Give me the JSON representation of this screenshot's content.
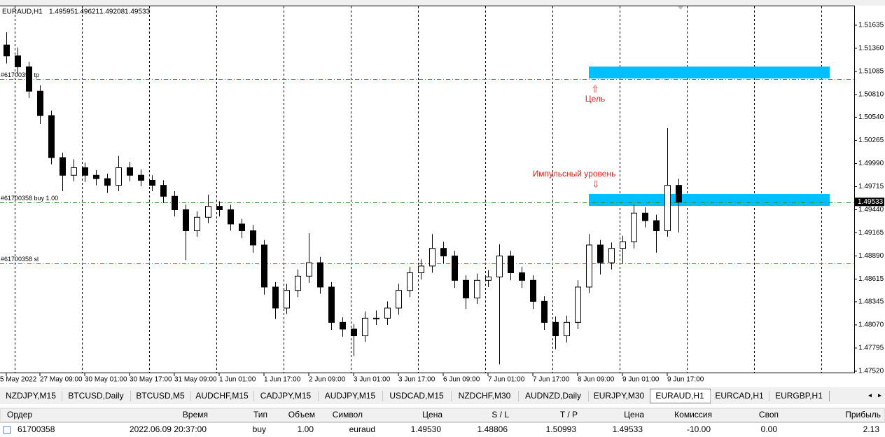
{
  "chart_data": {
    "type": "candlestick",
    "title": "EURAUD,H1",
    "header_values": [
      1.49595,
      1.49621,
      1.49208,
      1.49533
    ],
    "categories": [
      "5 May 2022",
      null,
      null,
      "27 May 09:00",
      null,
      null,
      null,
      "30 May 01:00",
      null,
      null,
      null,
      "30 May 17:00",
      null,
      null,
      null,
      "31 May 09:00",
      null,
      null,
      null,
      "1 Jun 01:00",
      null,
      null,
      null,
      "1 Jun 17:00",
      null,
      null,
      null,
      "2 Jun 09:00",
      null,
      null,
      null,
      "3 Jun 01:00",
      null,
      null,
      null,
      "3 Jun 17:00",
      null,
      null,
      null,
      "6 Jun 09:00",
      null,
      null,
      null,
      "7 Jun 01:00",
      null,
      null,
      null,
      "7 Jun 17:00",
      null,
      null,
      null,
      "8 Jun 09:00",
      null,
      null,
      null,
      "9 Jun 01:00",
      null,
      null,
      null,
      "9 Jun 17:00",
      null
    ],
    "open": [
      1.514,
      1.5127,
      1.5114,
      1.5085,
      1.5056,
      1.5006,
      1.4985,
      1.4994,
      1.4985,
      1.4981,
      1.4973,
      1.4994,
      1.4985,
      1.4979,
      1.4973,
      1.496,
      1.4944,
      1.4919,
      1.4935,
      1.4948,
      1.4944,
      1.4927,
      1.4919,
      1.4902,
      1.4852,
      1.4827,
      1.4848,
      1.4865,
      1.4881,
      1.4852,
      1.481,
      1.4802,
      1.4794,
      1.4815,
      1.4815,
      1.4827,
      1.4848,
      1.4869,
      1.4877,
      1.4898,
      1.4889,
      1.486,
      1.4839,
      1.486,
      1.4864,
      1.4889,
      1.4869,
      1.486,
      1.4835,
      1.481,
      1.4794,
      1.481,
      1.4852,
      1.4902,
      1.4881,
      1.4898,
      1.4906,
      1.494,
      1.4931,
      1.4919,
      1.4973
    ],
    "high": [
      1.5155,
      1.5137,
      1.512,
      1.5092,
      1.5062,
      1.5012,
      1.5004,
      1.5,
      1.4991,
      1.4987,
      1.5008,
      1.5001,
      1.4992,
      1.4985,
      1.4979,
      1.4966,
      1.495,
      1.4942,
      1.4962,
      1.4954,
      1.495,
      1.4933,
      1.4926,
      1.4908,
      1.4858,
      1.4856,
      1.4873,
      1.4916,
      1.4888,
      1.4858,
      1.4816,
      1.4808,
      1.4823,
      1.4824,
      1.4835,
      1.4856,
      1.4876,
      1.4885,
      1.4915,
      1.4906,
      1.4895,
      1.4866,
      1.4868,
      1.4872,
      1.4903,
      1.4895,
      1.4876,
      1.4866,
      1.4841,
      1.4817,
      1.4818,
      1.486,
      1.4915,
      1.4908,
      1.4905,
      1.4913,
      1.495,
      1.4947,
      1.4938,
      1.5041,
      1.4981
    ],
    "low": [
      1.5118,
      1.5106,
      1.5077,
      1.5046,
      1.4998,
      1.4966,
      1.4978,
      1.4977,
      1.4973,
      1.4964,
      1.4966,
      1.4978,
      1.4972,
      1.4966,
      1.4952,
      1.4936,
      1.4884,
      1.4912,
      1.4928,
      1.4936,
      1.4919,
      1.491,
      1.4893,
      1.4843,
      1.4814,
      1.482,
      1.484,
      1.4857,
      1.4844,
      1.4801,
      1.4793,
      1.477,
      1.4787,
      1.4807,
      1.4807,
      1.4819,
      1.484,
      1.4861,
      1.4869,
      1.488,
      1.4851,
      1.4826,
      1.4832,
      1.4852,
      1.476,
      1.486,
      1.4851,
      1.4826,
      1.4801,
      1.4778,
      1.4786,
      1.4802,
      1.4845,
      1.4867,
      1.4873,
      1.488,
      1.4898,
      1.4923,
      1.4893,
      1.4912,
      1.4917
    ],
    "close": [
      1.5127,
      1.5114,
      1.5085,
      1.5056,
      1.5006,
      1.4985,
      1.4994,
      1.4985,
      1.4981,
      1.4973,
      1.4994,
      1.4985,
      1.4979,
      1.4973,
      1.496,
      1.4944,
      1.4919,
      1.4935,
      1.4948,
      1.4944,
      1.4927,
      1.4919,
      1.4902,
      1.4852,
      1.4827,
      1.4848,
      1.4865,
      1.4881,
      1.4852,
      1.481,
      1.4802,
      1.4794,
      1.4815,
      1.4815,
      1.4827,
      1.4848,
      1.4869,
      1.4877,
      1.4898,
      1.4889,
      1.486,
      1.4839,
      1.486,
      1.4864,
      1.4889,
      1.4869,
      1.486,
      1.4835,
      1.481,
      1.4794,
      1.481,
      1.4852,
      1.4902,
      1.4881,
      1.4898,
      1.4906,
      1.494,
      1.4931,
      1.4919,
      1.4973,
      1.4953
    ],
    "ylim": [
      1.47503,
      1.51868
    ],
    "yticks": [
      {
        "value": 1.51635,
        "label": "1.51635"
      },
      {
        "value": 1.5136,
        "label": "1.51360"
      },
      {
        "value": 1.51085,
        "label": "1.51085"
      },
      {
        "value": 1.5081,
        "label": "1.50810"
      },
      {
        "value": 1.5054,
        "label": "1.50540"
      },
      {
        "value": 1.50265,
        "label": "1.50265"
      },
      {
        "value": 1.4999,
        "label": "1.49990"
      },
      {
        "value": 1.49715,
        "label": "1.49715"
      },
      {
        "value": 1.4944,
        "label": "1.49440"
      },
      {
        "value": 1.49165,
        "label": "1.49165"
      },
      {
        "value": 1.4889,
        "label": "1.48890"
      },
      {
        "value": 1.48615,
        "label": "1.48615"
      },
      {
        "value": 1.48345,
        "label": "1.48345"
      },
      {
        "value": 1.4807,
        "label": "1.48070"
      },
      {
        "value": 1.47795,
        "label": "1.47795"
      },
      {
        "value": 1.4752,
        "label": "1.47520"
      }
    ],
    "order_lines": [
      {
        "label": "#61700358 tp",
        "value": 1.50993,
        "color": "#c8642d"
      },
      {
        "label": "#61700358 buy 1.00",
        "value": 1.4953,
        "color": "#2e8b2e"
      },
      {
        "label": "#61700358 sl",
        "value": 1.48806,
        "color": "#c8642d"
      }
    ],
    "last_price": 1.49533,
    "annotations": {
      "target": "Цель",
      "level": "Импульсный уровень"
    },
    "bull_color": "#ffffff",
    "bear_color": "#000000"
  },
  "tabs": [
    {
      "label": "NZDJPY,M15",
      "active": false
    },
    {
      "label": "BTCUSD,Daily",
      "active": false
    },
    {
      "label": "BTCUSD,M5",
      "active": false
    },
    {
      "label": "AUDCHF,M15",
      "active": false
    },
    {
      "label": "CADJPY,M15",
      "active": false
    },
    {
      "label": "AUDJPY,M15",
      "active": false
    },
    {
      "label": "USDCAD,M15",
      "active": false
    },
    {
      "label": "NZDCHF,M30",
      "active": false
    },
    {
      "label": "AUDNZD,Daily",
      "active": false
    },
    {
      "label": "EURJPY,M30",
      "active": false
    },
    {
      "label": "EURAUD,H1",
      "active": true
    },
    {
      "label": "EURCAD,H1",
      "active": false
    },
    {
      "label": "EURGBP,H1",
      "active": false
    }
  ],
  "table": {
    "header": [
      "Ордер",
      "Время",
      "Тип",
      "Объем",
      "Символ",
      "Цена",
      "S / L",
      "T / P",
      "Цена",
      "Комиссия",
      "Своп",
      "Прибыль"
    ],
    "rows": [
      [
        "61700358",
        "2022.06.09 20:37:00",
        "buy",
        "1.00",
        "euraud",
        "1.49530",
        "1.48806",
        "1.50993",
        "1.49533",
        "-10.00",
        "0.00",
        "2.13"
      ]
    ]
  }
}
